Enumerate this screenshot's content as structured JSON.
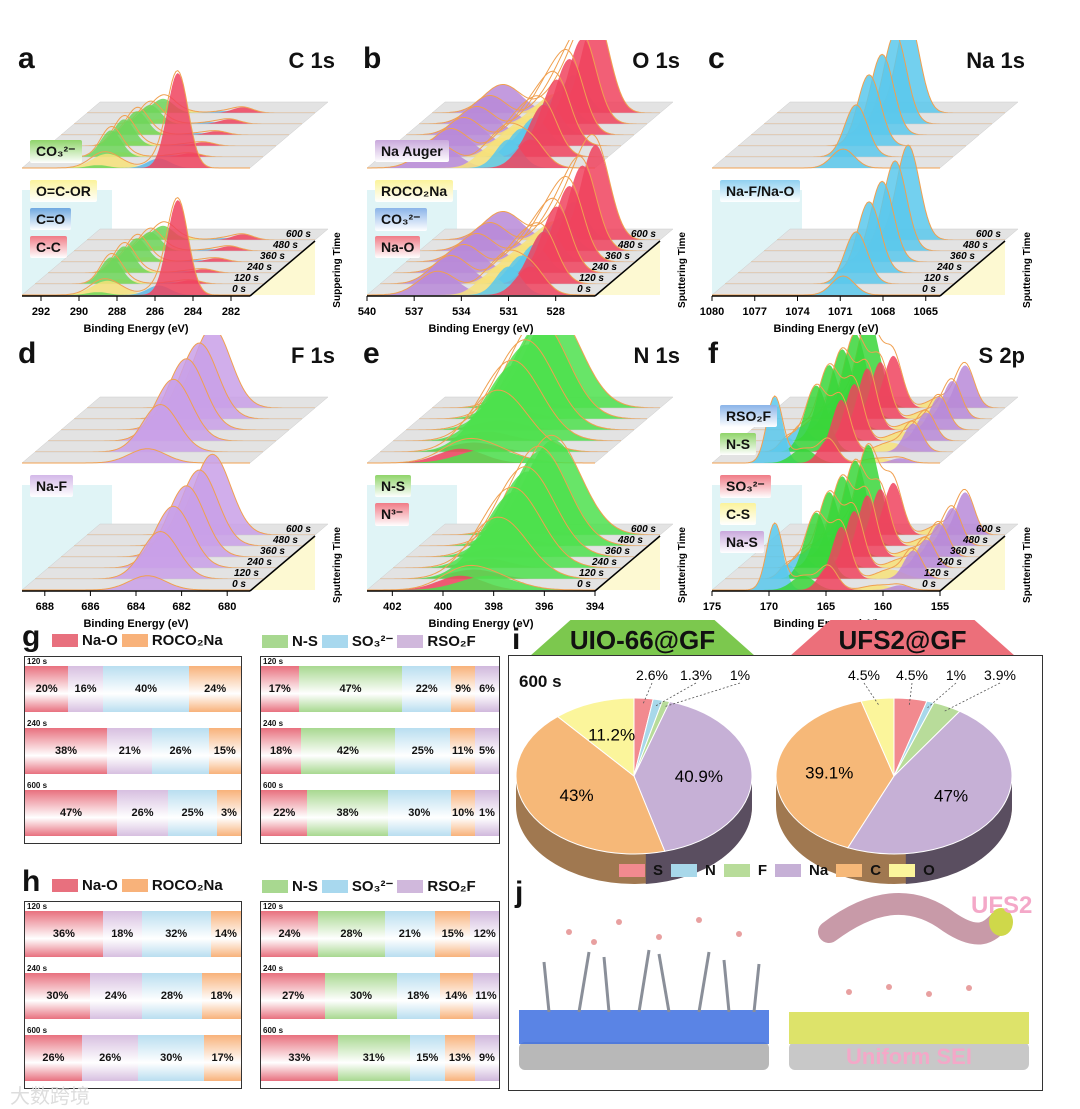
{
  "xps_panels": [
    {
      "label": "a",
      "title": "C 1s",
      "xlabel": "Binding Energy (eV)",
      "ylabel": "Suppering Time",
      "range": [
        293,
        281
      ],
      "ticks": [
        292,
        290,
        288,
        286,
        284,
        282
      ],
      "times": [
        "0 s",
        "120 s",
        "240 s",
        "360 s",
        "480 s",
        "600 s"
      ],
      "legend_back": [
        {
          "text": "CO₃²⁻",
          "color": "#8fd46a"
        }
      ],
      "legend_front": [
        {
          "text": "O=C-OR",
          "color": "#fbf39b"
        },
        {
          "text": "C=O",
          "color": "#6fa8e0"
        },
        {
          "text": "C-C",
          "color": "#f07b86"
        }
      ],
      "peaks": [
        {
          "c": 288.5,
          "w": 0.8,
          "color": "#f7e27a",
          "amps": [
            0.15,
            0.05,
            0.05,
            0.05,
            0.05,
            0.05
          ]
        },
        {
          "c": 285.8,
          "w": 0.6,
          "color": "#5bb8e8",
          "amps": [
            0.1,
            0.02,
            0.02,
            0.02,
            0.02,
            0.02
          ]
        },
        {
          "c": 289,
          "w": 0.55,
          "color": "#6fd65a",
          "amps": [
            0.03,
            0.28,
            0.28,
            0.25,
            0.2,
            0.15
          ]
        },
        {
          "c": 284.8,
          "w": 0.55,
          "color": "#f0435e",
          "amps": [
            1,
            0.04,
            0.04,
            0.04,
            0.05,
            0.06
          ]
        }
      ]
    },
    {
      "label": "b",
      "title": "O 1s",
      "xlabel": "Binding Energy (eV)",
      "ylabel": "Sputtering Time",
      "range": [
        540,
        525.5
      ],
      "ticks": [
        540,
        537,
        534,
        531,
        528
      ],
      "times": [
        "0 s",
        "120 s",
        "240 s",
        "360 s",
        "480 s",
        "600 s"
      ],
      "legend_back": [
        {
          "text": "Na Auger",
          "color": "#c9a8dc"
        }
      ],
      "legend_front": [
        {
          "text": "ROCO₂Na",
          "color": "#fbf39b"
        },
        {
          "text": "CO₃²⁻",
          "color": "#8ab4e8"
        },
        {
          "text": "Na-O",
          "color": "#f07b86"
        }
      ],
      "peaks": [
        {
          "c": 535.5,
          "w": 1.2,
          "color": "#b98ad8",
          "amps": [
            0.25,
            0.3,
            0.3,
            0.3,
            0.3,
            0.3
          ]
        },
        {
          "c": 532.2,
          "w": 0.9,
          "color": "#f7e27a",
          "amps": [
            0.2,
            0.2,
            0.2,
            0.2,
            0.2,
            0.2
          ]
        },
        {
          "c": 531,
          "w": 0.8,
          "color": "#5bc8ec",
          "amps": [
            0.3,
            0.3,
            0.3,
            0.35,
            0.35,
            0.4
          ]
        },
        {
          "c": 529.6,
          "w": 0.9,
          "color": "#f0435e",
          "amps": [
            0.3,
            0.55,
            0.7,
            0.8,
            0.9,
            1
          ]
        }
      ]
    },
    {
      "label": "c",
      "title": "Na 1s",
      "xlabel": "Binding Energy (eV)",
      "ylabel": "Sputtering Time",
      "range": [
        1080,
        1064
      ],
      "ticks": [
        1080,
        1077,
        1074,
        1071,
        1068,
        1065
      ],
      "times": [
        "0 s",
        "120 s",
        "240 s",
        "360 s",
        "480 s",
        "600 s"
      ],
      "legend_back": [],
      "legend_front": [
        {
          "text": "Na-F/Na-O",
          "color": "#8fd0f0"
        }
      ],
      "peaks": [
        {
          "c": 1070.8,
          "w": 0.8,
          "color": "#5bc8ec",
          "amps": [
            0.2,
            0.55,
            0.75,
            0.85,
            0.95,
            1
          ]
        }
      ]
    },
    {
      "label": "d",
      "title": "F 1s",
      "xlabel": "Binding Energy (eV)",
      "ylabel": "Sputtering Time",
      "range": [
        689,
        679
      ],
      "ticks": [
        688,
        686,
        684,
        682,
        680
      ],
      "times": [
        "0 s",
        "120 s",
        "240 s",
        "360 s",
        "480 s",
        "600 s"
      ],
      "legend_back": [],
      "legend_front": [
        {
          "text": "Na-F",
          "color": "#d3b8e8"
        }
      ],
      "peaks": [
        {
          "c": 683.5,
          "w": 0.8,
          "color": "#c9a0e8",
          "amps": [
            0.15,
            0.5,
            0.65,
            0.75,
            0.8,
            0.85
          ]
        }
      ]
    },
    {
      "label": "e",
      "title": "N 1s",
      "xlabel": "Binding Energy (eV)",
      "ylabel": "Sputtering Time",
      "range": [
        403,
        394
      ],
      "ticks": [
        402,
        400,
        398,
        396,
        394
      ],
      "times": [
        "0 s",
        "120 s",
        "240 s",
        "360 s",
        "480 s",
        "600 s"
      ],
      "legend_back": [],
      "legend_front": [
        {
          "text": "N-S",
          "color": "#8fd46a"
        },
        {
          "text": "N³⁻",
          "color": "#f07b86"
        }
      ],
      "peaks": [
        {
          "c": 399.3,
          "w": 0.9,
          "color": "#f0435e",
          "amps": [
            0.15,
            0.1,
            0.1,
            0.1,
            0.1,
            0.1
          ]
        },
        {
          "c": 398.2,
          "w": 1.1,
          "color": "#4de04d",
          "amps": [
            0.15,
            0.6,
            0.8,
            0.9,
            1,
            1
          ]
        }
      ]
    },
    {
      "label": "f",
      "title": "S 2p",
      "xlabel": "Binding Energy (eV)",
      "ylabel": "Sputtering Time",
      "range": [
        175,
        155
      ],
      "ticks": [
        175,
        170,
        165,
        160,
        155
      ],
      "times": [
        "0 s",
        "120 s",
        "240 s",
        "360 s",
        "480 s",
        "600 s"
      ],
      "legend_back": [
        {
          "text": "RSO₂F",
          "color": "#8ab4e8"
        },
        {
          "text": "N-S",
          "color": "#8fd46a"
        }
      ],
      "legend_front": [
        {
          "text": "SO₃²⁻",
          "color": "#f07b86"
        },
        {
          "text": "C-S",
          "color": "#fbf39b"
        },
        {
          "text": "Na-S",
          "color": "#c9a8dc"
        }
      ],
      "peaks": [
        {
          "c": 169.5,
          "w": 0.7,
          "color": "#5bc8ec",
          "amps": [
            0.7,
            0.15,
            0.15,
            0.1,
            0.1,
            0.1
          ]
        },
        {
          "c": 160.5,
          "w": 1.2,
          "color": "#f7e27a",
          "amps": [
            0.05,
            0.1,
            0.1,
            0.1,
            0.1,
            0.12
          ]
        },
        {
          "c": 158.5,
          "w": 0.8,
          "color": "#b98ad8",
          "amps": [
            0.05,
            0.3,
            0.3,
            0.35,
            0.4,
            0.45
          ]
        },
        {
          "c": 167,
          "w": 1,
          "color": "#3ad63a",
          "amps": [
            0.15,
            0.7,
            0.8,
            0.85,
            0.9,
            0.95
          ]
        },
        {
          "c": 164.8,
          "w": 0.8,
          "color": "#f0435e",
          "amps": [
            0.25,
            0.55,
            0.6,
            0.65,
            0.6,
            0.55
          ]
        }
      ]
    }
  ],
  "bars": {
    "g": {
      "label": "g",
      "legend_left": [
        {
          "text": "Na-O",
          "color": "#e8707e"
        },
        {
          "text": "ROCO₂Na",
          "color": "#f8b27a"
        }
      ],
      "legend_right": [
        {
          "text": "N-S",
          "color": "#a8d890"
        },
        {
          "text": "SO₃²⁻",
          "color": "#a8d8ee"
        },
        {
          "text": "RSO₂F",
          "color": "#d0b8dc"
        }
      ],
      "left": {
        "colors": [
          "#e8707e",
          "#d7bfe0",
          "#b9def0",
          "#f8b27a"
        ],
        "rows": [
          {
            "time": "120 s",
            "values": [
              20,
              16,
              40,
              24
            ]
          },
          {
            "time": "240 s",
            "values": [
              38,
              21,
              26,
              15
            ]
          },
          {
            "time": "600 s",
            "values": [
              47,
              26,
              25,
              3
            ]
          }
        ]
      },
      "right": {
        "colors": [
          "#e8707e",
          "#a8d890",
          "#b9def0",
          "#f8b27a",
          "#d0b8dc"
        ],
        "rows": [
          {
            "time": "120 s",
            "values": [
              17,
              47,
              22,
              9,
              6
            ]
          },
          {
            "time": "240 s",
            "values": [
              18,
              42,
              25,
              11,
              5
            ]
          },
          {
            "time": "600 s",
            "values": [
              22,
              38,
              30,
              10,
              1
            ]
          }
        ]
      }
    },
    "h": {
      "label": "h",
      "legend_left": [
        {
          "text": "Na-O",
          "color": "#e8707e"
        },
        {
          "text": "ROCO₂Na",
          "color": "#f8b27a"
        }
      ],
      "legend_right": [
        {
          "text": "N-S",
          "color": "#a8d890"
        },
        {
          "text": "SO₃²⁻",
          "color": "#a8d8ee"
        },
        {
          "text": "RSO₂F",
          "color": "#d0b8dc"
        }
      ],
      "left": {
        "colors": [
          "#e8707e",
          "#d7bfe0",
          "#b9def0",
          "#f8b27a"
        ],
        "rows": [
          {
            "time": "120 s",
            "values": [
              36,
              18,
              32,
              14
            ]
          },
          {
            "time": "240 s",
            "values": [
              30,
              24,
              28,
              18
            ]
          },
          {
            "time": "600 s",
            "values": [
              26,
              26,
              30,
              17
            ]
          }
        ]
      },
      "right": {
        "colors": [
          "#e8707e",
          "#a8d890",
          "#b9def0",
          "#f8b27a",
          "#d0b8dc"
        ],
        "rows": [
          {
            "time": "120 s",
            "values": [
              24,
              28,
              21,
              15,
              12
            ]
          },
          {
            "time": "240 s",
            "values": [
              27,
              30,
              18,
              14,
              11
            ]
          },
          {
            "time": "600 s",
            "values": [
              33,
              31,
              15,
              13,
              9
            ]
          }
        ]
      }
    }
  },
  "chart_data": {
    "type": "pie",
    "label": "i",
    "time": "600 s",
    "categories": [
      "S",
      "N",
      "F",
      "Na",
      "C",
      "O"
    ],
    "colors": [
      "#f28a8f",
      "#a8d8ea",
      "#b8dc9a",
      "#c6b0d6",
      "#f6b878",
      "#fbf59b"
    ],
    "series": [
      {
        "name": "UIO-66@GF",
        "values": [
          2.6,
          1.3,
          1,
          40.9,
          43,
          11.2
        ],
        "labels": [
          "2.6%",
          "1.3%",
          "1%",
          "40.9%",
          "43%",
          "11.2%"
        ],
        "header_color": "#7cc84e"
      },
      {
        "name": "UFS2@GF",
        "values": [
          4.5,
          1,
          3.9,
          47,
          39.1,
          4.5
        ],
        "labels": [
          "4.5%",
          "1%",
          "3.9%",
          "47%",
          "39.1%",
          "4.5%"
        ],
        "header_color": "#ec6f7a"
      }
    ]
  },
  "illustration": {
    "label": "j",
    "ufs2": "UFS2",
    "sei": "Uniform SEI"
  },
  "watermark": "大数跨境"
}
